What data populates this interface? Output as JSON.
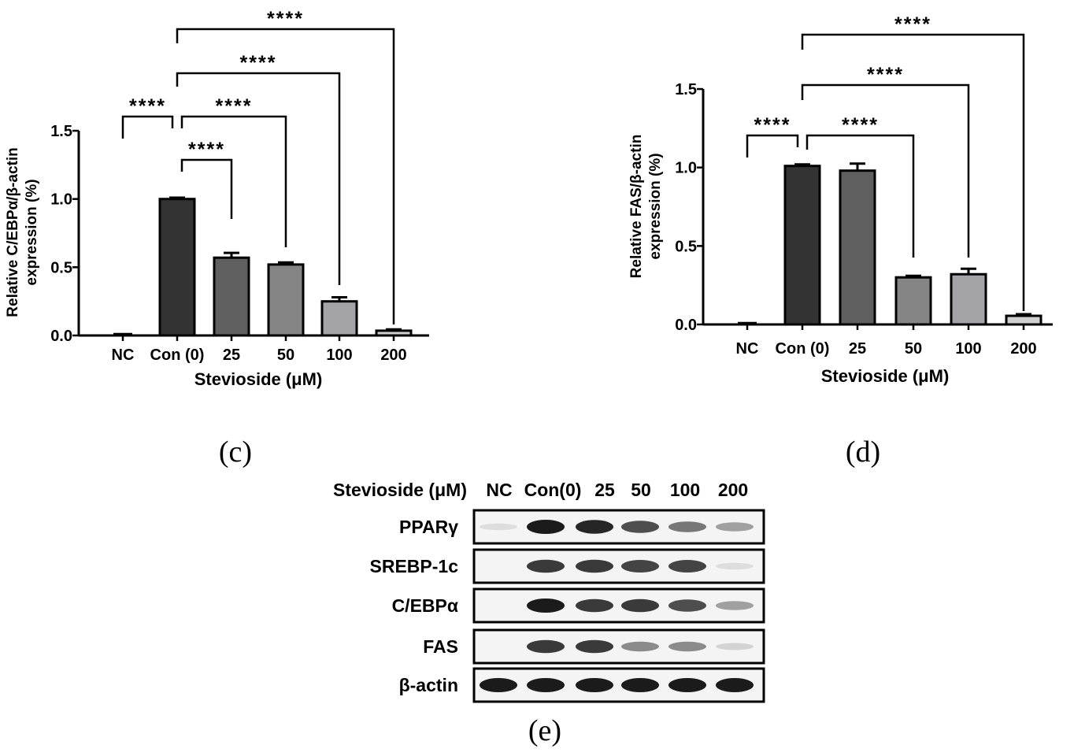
{
  "chart_data": [
    {
      "type": "bar",
      "panel": "(c)",
      "categories": [
        "NC",
        "Con (0)",
        "25",
        "50",
        "100",
        "200"
      ],
      "values": [
        0.0,
        1.0,
        0.57,
        0.52,
        0.25,
        0.035
      ],
      "errors": [
        0.0,
        0.01,
        0.035,
        0.015,
        0.03,
        0.01
      ],
      "colors": [
        "#ffffff",
        "#333333",
        "#5f5f5f",
        "#858585",
        "#a3a3a8",
        "#d0d0d0"
      ],
      "title": "",
      "xlabel": "Stevioside (μM)",
      "ylabel_line1": "Relative C/EBPα/β-actin",
      "ylabel_line2": "expression (%)",
      "ylim": [
        0,
        1.5
      ],
      "yticks": [
        0,
        0.5,
        1.0,
        1.5
      ],
      "ytick_labels": [
        "0.0",
        "0.5",
        "1.0",
        "1.5"
      ],
      "comparisons": [
        {
          "from": "NC",
          "to": "Con (0)",
          "label": "****"
        },
        {
          "from": "Con (0)",
          "to": "25",
          "label": "****"
        },
        {
          "from": "Con (0)",
          "to": "50",
          "label": "****"
        },
        {
          "from": "Con (0)",
          "to": "100",
          "label": "****"
        },
        {
          "from": "Con (0)",
          "to": "200",
          "label": "****"
        }
      ]
    },
    {
      "type": "bar",
      "panel": "(d)",
      "categories": [
        "NC",
        "Con (0)",
        "25",
        "50",
        "100",
        "200"
      ],
      "values": [
        0.0,
        1.01,
        0.98,
        0.3,
        0.32,
        0.055
      ],
      "errors": [
        0.0,
        0.01,
        0.045,
        0.01,
        0.035,
        0.01
      ],
      "colors": [
        "#ffffff",
        "#333333",
        "#5f5f5f",
        "#858585",
        "#a3a3a8",
        "#d0d0d0"
      ],
      "title": "",
      "xlabel": "Stevioside (μM)",
      "ylabel_line1": "Relative FAS/β-actin",
      "ylabel_line2": "expression (%)",
      "ylim": [
        0,
        1.5
      ],
      "yticks": [
        0,
        0.5,
        1.0,
        1.5
      ],
      "ytick_labels": [
        "0.0",
        "0.5",
        "1.0",
        "1.5"
      ],
      "comparisons": [
        {
          "from": "NC",
          "to": "Con (0)",
          "label": "****"
        },
        {
          "from": "Con (0)",
          "to": "50",
          "label": "****"
        },
        {
          "from": "Con (0)",
          "to": "100",
          "label": "****"
        },
        {
          "from": "Con (0)",
          "to": "200",
          "label": "****"
        }
      ]
    }
  ],
  "blot": {
    "panel": "(e)",
    "header_label": "Stevioside (μM)",
    "lanes": [
      "NC",
      "Con(0)",
      "25",
      "50",
      "100",
      "200"
    ],
    "rows": [
      {
        "label": "PPARγ",
        "intensity": [
          0.05,
          1.0,
          0.95,
          0.75,
          0.55,
          0.35
        ]
      },
      {
        "label": "SREBP-1c",
        "intensity": [
          0.0,
          0.85,
          0.85,
          0.8,
          0.8,
          0.05
        ]
      },
      {
        "label": "C/EBPα",
        "intensity": [
          0.0,
          1.0,
          0.85,
          0.85,
          0.75,
          0.35
        ]
      },
      {
        "label": "FAS",
        "intensity": [
          0.0,
          0.85,
          0.85,
          0.45,
          0.45,
          0.1
        ]
      },
      {
        "label": "β-actin",
        "intensity": [
          1.0,
          1.0,
          1.0,
          1.0,
          1.0,
          1.0
        ]
      }
    ]
  }
}
